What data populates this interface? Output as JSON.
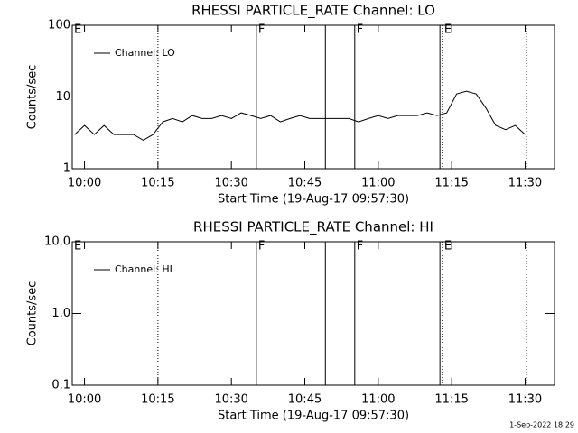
{
  "chart_data": [
    {
      "type": "line",
      "title": "RHESSI PARTICLE_RATE Channel: LO",
      "xlabel": "Start Time (19-Aug-17 09:57:30)",
      "ylabel": "Counts/sec",
      "log_y": true,
      "legend": "upper left",
      "xlim": [
        597.5,
        696
      ],
      "ylim": [
        1,
        100
      ],
      "xticks": [
        {
          "value": 600,
          "label": "10:00"
        },
        {
          "value": 615,
          "label": "10:15"
        },
        {
          "value": 630,
          "label": "10:30"
        },
        {
          "value": 645,
          "label": "10:45"
        },
        {
          "value": 660,
          "label": "11:00"
        },
        {
          "value": 675,
          "label": "11:15"
        },
        {
          "value": 690,
          "label": "11:30"
        }
      ],
      "yticks": [
        1,
        10,
        100
      ],
      "x": [
        598,
        600,
        602,
        604,
        606,
        608,
        610,
        612,
        614,
        616,
        618,
        620,
        622,
        624,
        626,
        628,
        630,
        632,
        634,
        636,
        638,
        640,
        642,
        644,
        646,
        648,
        650,
        652,
        654,
        656,
        658,
        660,
        662,
        664,
        666,
        668,
        670,
        672,
        674,
        676,
        678,
        680,
        682,
        684,
        686,
        688,
        690
      ],
      "series": [
        {
          "name": "Channel: LO",
          "color": "#000000",
          "values": [
            3,
            4,
            3,
            4,
            3,
            3,
            3,
            2.5,
            3,
            4.5,
            5,
            4.5,
            5.5,
            5,
            5,
            5.5,
            5,
            6,
            5.5,
            5,
            5.5,
            4.5,
            5,
            5.5,
            5,
            5,
            5,
            5,
            5,
            4.5,
            5,
            5.5,
            5,
            5.5,
            5.5,
            5.5,
            6,
            5.5,
            6,
            11,
            12,
            11,
            7,
            4,
            3.5,
            4,
            3
          ]
        }
      ],
      "vlines": [
        {
          "x": 615.0,
          "style": "dotted"
        },
        {
          "x": 635.1,
          "style": "solid"
        },
        {
          "x": 649.2,
          "style": "solid"
        },
        {
          "x": 655.2,
          "style": "solid"
        },
        {
          "x": 672.6,
          "style": "solid"
        },
        {
          "x": 673.1,
          "style": "dotted"
        },
        {
          "x": 690.3,
          "style": "dotted"
        }
      ],
      "flags": [
        {
          "x": 597.5,
          "label": "E"
        },
        {
          "x": 635.1,
          "label": "F"
        },
        {
          "x": 655.2,
          "label": "F"
        },
        {
          "x": 673.1,
          "label": "E"
        }
      ]
    },
    {
      "type": "line",
      "title": "RHESSI PARTICLE_RATE Channel: HI",
      "xlabel": "Start Time (19-Aug-17 09:57:30)",
      "ylabel": "Counts/sec",
      "log_y": true,
      "legend": "upper left",
      "xlim": [
        597.5,
        696
      ],
      "ylim": [
        0.1,
        10
      ],
      "xticks": [
        {
          "value": 600,
          "label": "10:00"
        },
        {
          "value": 615,
          "label": "10:15"
        },
        {
          "value": 630,
          "label": "10:30"
        },
        {
          "value": 645,
          "label": "10:45"
        },
        {
          "value": 660,
          "label": "11:00"
        },
        {
          "value": 675,
          "label": "11:15"
        },
        {
          "value": 690,
          "label": "11:30"
        }
      ],
      "yticks": [
        0.1,
        {
          "value": 1,
          "label": "1.0"
        },
        {
          "value": 10,
          "label": "10.0"
        }
      ],
      "x": [],
      "series": [
        {
          "name": "Channel: HI",
          "color": "#000000",
          "values": []
        }
      ],
      "vlines": [
        {
          "x": 615.0,
          "style": "dotted"
        },
        {
          "x": 635.1,
          "style": "solid"
        },
        {
          "x": 649.2,
          "style": "solid"
        },
        {
          "x": 655.2,
          "style": "solid"
        },
        {
          "x": 672.6,
          "style": "solid"
        },
        {
          "x": 673.1,
          "style": "dotted"
        },
        {
          "x": 690.3,
          "style": "dotted"
        }
      ],
      "flags": [
        {
          "x": 597.5,
          "label": "E"
        },
        {
          "x": 635.1,
          "label": "F"
        },
        {
          "x": 655.2,
          "label": "F"
        },
        {
          "x": 673.1,
          "label": "E"
        }
      ]
    }
  ],
  "footer": "1-Sep-2022 18:29"
}
